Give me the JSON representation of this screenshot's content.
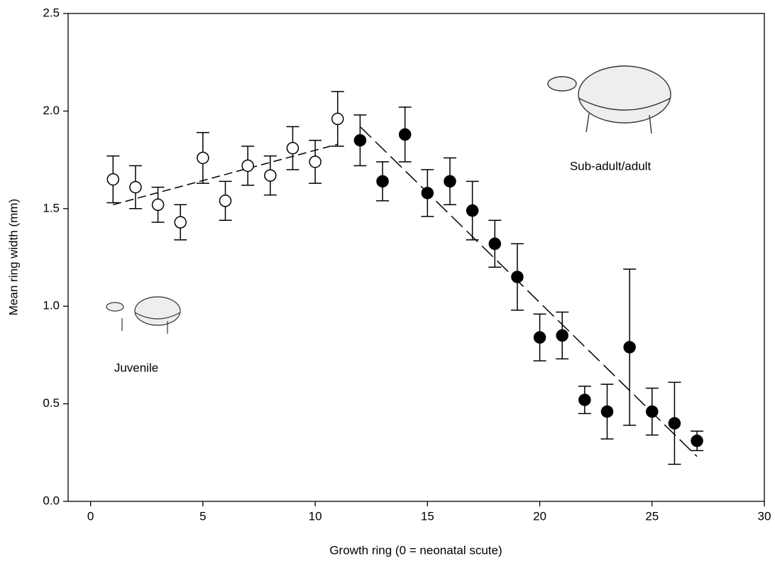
{
  "chart_data": {
    "type": "scatter",
    "x_label": "Growth ring (0 = neonatal scute)",
    "y_label": "Mean ring width (mm)",
    "xlim": [
      -1,
      30
    ],
    "ylim": [
      0,
      2.5
    ],
    "xticks": [
      0,
      5,
      10,
      15,
      20,
      25,
      30
    ],
    "yticks": [
      {
        "value": 0,
        "label": "0.0"
      },
      0.5,
      {
        "value": 1,
        "label": "1.0"
      },
      1.5,
      {
        "value": 2,
        "label": "2.0"
      },
      2.5
    ],
    "series": [
      {
        "name": "Juvenile",
        "color": "#ffffff",
        "x": [
          1,
          2,
          3,
          4,
          5,
          6,
          7,
          8,
          9,
          10,
          11
        ],
        "values": [
          1.65,
          1.61,
          1.52,
          1.43,
          1.76,
          1.54,
          1.72,
          1.67,
          1.81,
          1.74,
          1.96
        ],
        "errors": [
          0.12,
          0.11,
          0.09,
          0.09,
          0.13,
          0.1,
          0.1,
          0.1,
          0.11,
          0.11,
          0.14
        ]
      },
      {
        "name": "Sub-adult/adult",
        "color": "#000000",
        "x": [
          12,
          13,
          14,
          15,
          16,
          17,
          18,
          19,
          20,
          21,
          22,
          23,
          24,
          25,
          26,
          27
        ],
        "values": [
          1.85,
          1.64,
          1.88,
          1.58,
          1.64,
          1.49,
          1.32,
          1.15,
          0.84,
          0.85,
          0.52,
          0.46,
          0.79,
          0.46,
          0.4,
          0.31
        ],
        "errors": [
          0.13,
          0.1,
          0.14,
          0.12,
          0.12,
          0.15,
          0.12,
          0.17,
          0.12,
          0.12,
          0.07,
          0.14,
          0.4,
          0.12,
          0.21,
          0.05
        ]
      }
    ],
    "trend_lines": [
      {
        "x": [
          1,
          11
        ],
        "y": [
          1.52,
          1.83
        ]
      },
      {
        "x": [
          12,
          27
        ],
        "y": [
          1.92,
          0.23
        ]
      }
    ]
  }
}
